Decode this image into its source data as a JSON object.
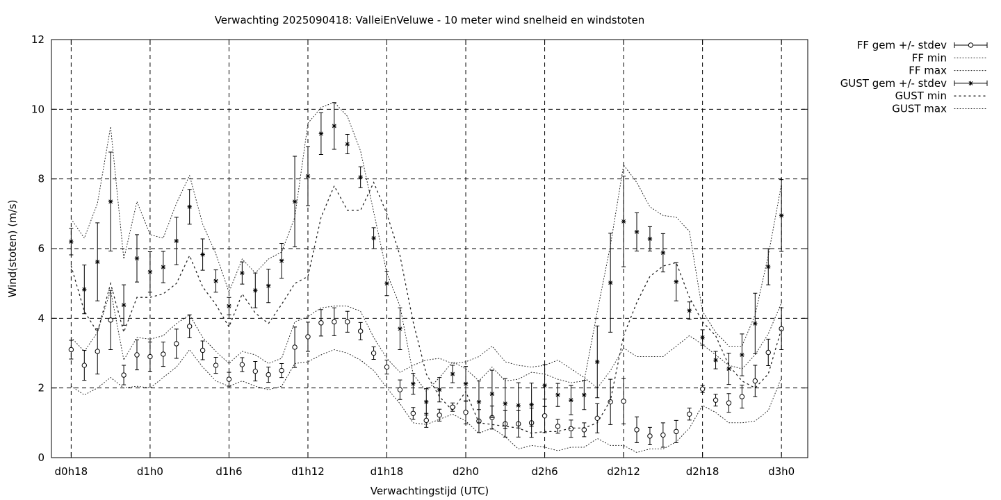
{
  "chart_data": {
    "type": "line",
    "title": "Verwachting 2025090418: ValleiEnVeluwe - 10 meter wind snelheid en windstoten",
    "xlabel": "Verwachtingstijd (UTC)",
    "ylabel": "Wind(stoten) (m/s)",
    "ylim": [
      0,
      12
    ],
    "yticks": [
      0,
      2,
      4,
      6,
      8,
      10,
      12
    ],
    "xlim": [
      -1.5,
      56
    ],
    "xticks": [
      {
        "x": 0,
        "label": "d0h18"
      },
      {
        "x": 6,
        "label": "d1h0"
      },
      {
        "x": 12,
        "label": "d1h6"
      },
      {
        "x": 18,
        "label": "d1h12"
      },
      {
        "x": 24,
        "label": "d1h18"
      },
      {
        "x": 30,
        "label": "d2h0"
      },
      {
        "x": 36,
        "label": "d2h6"
      },
      {
        "x": 42,
        "label": "d2h12"
      },
      {
        "x": 48,
        "label": "d2h18"
      },
      {
        "x": 54,
        "label": "d3h0"
      }
    ],
    "grid": true,
    "legend_position": "outside-top-right",
    "series": [
      {
        "name": "FF gem +/- stdev",
        "style": "errorbars-circle",
        "y": [
          3.1,
          2.65,
          3.05,
          3.95,
          2.37,
          2.95,
          2.9,
          2.97,
          3.27,
          3.77,
          3.08,
          2.65,
          2.25,
          2.67,
          2.48,
          2.38,
          2.5,
          3.17,
          3.47,
          3.87,
          3.9,
          3.9,
          3.63,
          3.0,
          2.6,
          1.95,
          1.27,
          1.07,
          1.22,
          1.45,
          1.3,
          1.05,
          1.15,
          0.97,
          0.97,
          1.0,
          1.2,
          0.9,
          0.83,
          0.8,
          1.13,
          1.6,
          1.62,
          0.8,
          0.62,
          0.65,
          0.75,
          1.25,
          1.97,
          1.65,
          1.57,
          1.75,
          2.2,
          3.02,
          3.7
        ],
        "err": [
          0.27,
          0.43,
          0.65,
          0.85,
          0.28,
          0.43,
          0.42,
          0.35,
          0.42,
          0.33,
          0.27,
          0.23,
          0.2,
          0.2,
          0.28,
          0.22,
          0.2,
          0.58,
          0.42,
          0.38,
          0.4,
          0.3,
          0.25,
          0.18,
          0.2,
          0.28,
          0.17,
          0.2,
          0.17,
          0.12,
          0.33,
          0.33,
          0.33,
          0.38,
          0.38,
          0.42,
          0.48,
          0.2,
          0.25,
          0.2,
          0.42,
          0.65,
          0.65,
          0.37,
          0.25,
          0.35,
          0.32,
          0.17,
          0.1,
          0.17,
          0.27,
          0.33,
          0.45,
          0.38,
          0.6
        ]
      },
      {
        "name": "FF min",
        "style": "dotted",
        "y": [
          2.05,
          1.8,
          2.0,
          2.3,
          2.0,
          2.05,
          2.0,
          2.3,
          2.6,
          3.1,
          2.6,
          2.2,
          2.05,
          2.2,
          2.05,
          1.95,
          2.05,
          2.7,
          2.75,
          2.95,
          3.1,
          3.0,
          2.8,
          2.5,
          2.0,
          1.55,
          1.0,
          0.95,
          1.1,
          1.25,
          1.05,
          0.7,
          0.85,
          0.6,
          0.25,
          0.35,
          0.3,
          0.2,
          0.3,
          0.3,
          0.55,
          0.35,
          0.35,
          0.15,
          0.25,
          0.25,
          0.45,
          0.85,
          1.5,
          1.3,
          1.0,
          1.0,
          1.05,
          1.35,
          2.3
        ]
      },
      {
        "name": "FF max",
        "style": "dotted",
        "y": [
          3.45,
          3.05,
          3.6,
          4.8,
          2.8,
          3.45,
          3.4,
          3.5,
          3.85,
          4.1,
          3.45,
          3.05,
          2.7,
          3.05,
          2.95,
          2.7,
          2.85,
          3.9,
          4.05,
          4.3,
          4.35,
          4.35,
          4.2,
          3.45,
          2.85,
          2.45,
          2.65,
          2.8,
          2.85,
          2.7,
          2.75,
          2.9,
          3.2,
          2.75,
          2.65,
          2.6,
          2.65,
          2.8,
          2.55,
          2.3,
          2.0,
          2.5,
          3.15,
          2.9,
          2.9,
          2.9,
          3.2,
          3.5,
          3.25,
          2.95,
          2.65,
          2.55,
          2.95,
          3.55,
          4.45
        ]
      },
      {
        "name": "GUST gem +/- stdev",
        "style": "errorbars-star",
        "y": [
          6.2,
          4.83,
          5.62,
          7.35,
          4.38,
          5.72,
          5.33,
          5.47,
          6.22,
          7.2,
          5.83,
          5.07,
          4.35,
          5.3,
          4.8,
          4.93,
          5.65,
          7.35,
          8.08,
          9.3,
          9.52,
          9.0,
          8.05,
          6.3,
          5.0,
          3.7,
          2.12,
          1.6,
          1.95,
          2.4,
          2.12,
          1.6,
          1.83,
          1.55,
          1.5,
          1.52,
          2.07,
          1.8,
          1.65,
          1.8,
          2.75,
          5.02,
          6.78,
          6.48,
          6.28,
          5.88,
          5.05,
          4.22,
          3.45,
          2.8,
          2.55,
          2.95,
          3.85,
          5.48,
          6.95
        ],
        "err": [
          0.38,
          0.7,
          1.12,
          1.42,
          0.58,
          0.68,
          0.58,
          0.45,
          0.68,
          0.5,
          0.45,
          0.32,
          0.25,
          0.32,
          0.5,
          0.48,
          0.5,
          1.3,
          0.85,
          0.6,
          0.67,
          0.28,
          0.3,
          0.3,
          0.35,
          0.6,
          0.3,
          0.38,
          0.35,
          0.25,
          0.5,
          0.6,
          0.68,
          0.72,
          0.65,
          0.62,
          0.6,
          0.33,
          0.42,
          0.42,
          1.03,
          1.42,
          1.3,
          0.55,
          0.35,
          0.55,
          0.55,
          0.25,
          0.22,
          0.25,
          0.45,
          0.6,
          0.87,
          0.52,
          1.03
        ]
      },
      {
        "name": "GUST min",
        "style": "dashed-dots",
        "y": [
          5.5,
          4.2,
          3.6,
          5.0,
          3.6,
          4.6,
          4.6,
          4.7,
          5.0,
          5.8,
          4.9,
          4.4,
          3.75,
          4.7,
          4.15,
          3.85,
          4.4,
          5.0,
          5.2,
          6.9,
          7.8,
          7.1,
          7.1,
          7.9,
          7.0,
          5.8,
          3.9,
          2.4,
          1.75,
          1.35,
          1.9,
          1.0,
          0.95,
          0.9,
          0.85,
          0.7,
          0.75,
          0.75,
          0.85,
          0.85,
          1.0,
          1.65,
          3.5,
          4.45,
          5.2,
          5.5,
          5.6,
          4.6,
          3.9,
          3.5,
          2.65,
          2.2,
          2.0,
          2.4,
          3.7
        ]
      },
      {
        "name": "GUST max",
        "style": "dotted",
        "y": [
          6.85,
          6.3,
          7.3,
          9.5,
          5.7,
          7.35,
          6.4,
          6.3,
          7.3,
          8.1,
          6.7,
          5.85,
          4.75,
          5.7,
          5.3,
          5.7,
          5.9,
          6.9,
          9.6,
          10.05,
          10.2,
          9.8,
          8.8,
          7.05,
          5.3,
          4.35,
          2.4,
          1.9,
          2.3,
          2.75,
          2.55,
          2.2,
          2.6,
          2.2,
          2.25,
          2.45,
          2.4,
          2.25,
          2.15,
          2.2,
          4.2,
          6.1,
          8.4,
          7.9,
          7.2,
          6.95,
          6.9,
          6.5,
          4.2,
          3.6,
          3.2,
          3.2,
          4.1,
          5.8,
          7.85
        ]
      }
    ]
  }
}
